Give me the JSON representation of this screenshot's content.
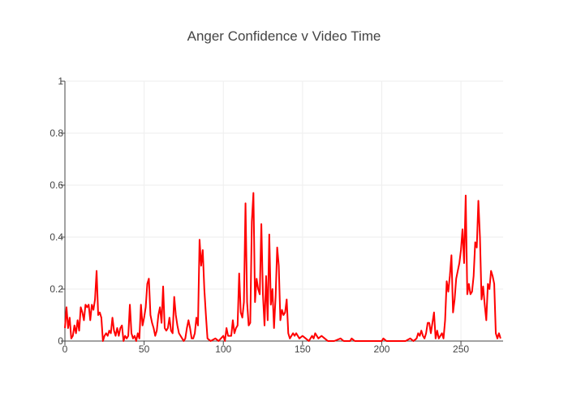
{
  "chart_data": {
    "type": "line",
    "title": "Anger Confidence v Video Time",
    "x": [
      0,
      1,
      2,
      3,
      4,
      5,
      6,
      7,
      8,
      9,
      10,
      11,
      12,
      13,
      14,
      15,
      16,
      17,
      18,
      19,
      20,
      21,
      22,
      23,
      24,
      25,
      26,
      27,
      28,
      29,
      30,
      31,
      32,
      33,
      34,
      35,
      36,
      37,
      38,
      39,
      40,
      41,
      42,
      43,
      44,
      45,
      46,
      47,
      48,
      49,
      50,
      51,
      52,
      53,
      54,
      55,
      56,
      57,
      58,
      59,
      60,
      61,
      62,
      63,
      64,
      65,
      66,
      67,
      68,
      69,
      70,
      71,
      72,
      73,
      74,
      75,
      76,
      77,
      78,
      79,
      80,
      81,
      82,
      83,
      84,
      85,
      86,
      87,
      88,
      89,
      90,
      92,
      95,
      97,
      100,
      101,
      102,
      103,
      104,
      105,
      106,
      107,
      108,
      109,
      110,
      111,
      112,
      113,
      114,
      115,
      116,
      117,
      118,
      119,
      120,
      121,
      122,
      123,
      124,
      125,
      126,
      127,
      128,
      129,
      130,
      131,
      132,
      133,
      134,
      135,
      136,
      137,
      138,
      139,
      140,
      141,
      142,
      143,
      144,
      145,
      146,
      148,
      150,
      152,
      154,
      156,
      157,
      158,
      160,
      162,
      164,
      166,
      170,
      174,
      176,
      180,
      181,
      183,
      190,
      200,
      201,
      203,
      210,
      215,
      218,
      220,
      222,
      223,
      224,
      225,
      226,
      227,
      228,
      229,
      230,
      231,
      232,
      233,
      234,
      235,
      236,
      237,
      238,
      239,
      240,
      241,
      242,
      243,
      244,
      245,
      246,
      247,
      248,
      249,
      250,
      251,
      252,
      253,
      254,
      255,
      256,
      257,
      258,
      259,
      260,
      261,
      262,
      263,
      264,
      265,
      266,
      267,
      268,
      269,
      270,
      271,
      272,
      273,
      274,
      275
    ],
    "series": [
      {
        "color": "#ff0000",
        "values": [
          0.05,
          0.13,
          0.05,
          0.09,
          0.01,
          0.02,
          0.06,
          0.03,
          0.08,
          0.04,
          0.13,
          0.11,
          0.08,
          0.14,
          0.13,
          0.14,
          0.08,
          0.14,
          0.12,
          0.16,
          0.27,
          0.1,
          0.11,
          0.09,
          0.0,
          0.02,
          0.03,
          0.02,
          0.04,
          0.03,
          0.09,
          0.04,
          0.02,
          0.05,
          0.02,
          0.05,
          0.06,
          0.0,
          0.02,
          0.01,
          0.02,
          0.14,
          0.03,
          0.01,
          0.02,
          0.0,
          0.03,
          0.01,
          0.14,
          0.06,
          0.09,
          0.13,
          0.22,
          0.24,
          0.1,
          0.07,
          0.05,
          0.02,
          0.04,
          0.1,
          0.13,
          0.07,
          0.21,
          0.05,
          0.04,
          0.05,
          0.09,
          0.04,
          0.03,
          0.17,
          0.1,
          0.06,
          0.03,
          0.02,
          0.01,
          0.0,
          0.01,
          0.05,
          0.08,
          0.05,
          0.01,
          0.01,
          0.03,
          0.09,
          0.06,
          0.39,
          0.29,
          0.35,
          0.2,
          0.1,
          0.01,
          0.0,
          0.01,
          0.0,
          0.02,
          0.0,
          0.05,
          0.02,
          0.02,
          0.02,
          0.08,
          0.03,
          0.05,
          0.06,
          0.26,
          0.11,
          0.09,
          0.15,
          0.53,
          0.15,
          0.06,
          0.07,
          0.46,
          0.57,
          0.15,
          0.24,
          0.2,
          0.18,
          0.45,
          0.18,
          0.06,
          0.25,
          0.08,
          0.41,
          0.14,
          0.2,
          0.05,
          0.17,
          0.36,
          0.29,
          0.08,
          0.12,
          0.1,
          0.11,
          0.16,
          0.03,
          0.01,
          0.02,
          0.03,
          0.02,
          0.03,
          0.01,
          0.02,
          0.01,
          0.0,
          0.02,
          0.01,
          0.03,
          0.01,
          0.02,
          0.01,
          0.0,
          0.0,
          0.01,
          0.0,
          0.0,
          0.01,
          0.0,
          0.0,
          0.0,
          0.01,
          0.0,
          0.0,
          0.0,
          0.01,
          0.0,
          0.01,
          0.03,
          0.02,
          0.04,
          0.02,
          0.01,
          0.03,
          0.07,
          0.07,
          0.03,
          0.07,
          0.11,
          0.01,
          0.04,
          0.01,
          0.02,
          0.03,
          0.01,
          0.08,
          0.23,
          0.19,
          0.25,
          0.33,
          0.11,
          0.16,
          0.24,
          0.27,
          0.3,
          0.35,
          0.43,
          0.3,
          0.56,
          0.18,
          0.22,
          0.18,
          0.19,
          0.25,
          0.38,
          0.36,
          0.54,
          0.4,
          0.16,
          0.21,
          0.14,
          0.08,
          0.22,
          0.2,
          0.27,
          0.25,
          0.22,
          0.03,
          0.01,
          0.03,
          0.01
        ]
      }
    ],
    "xlim": [
      0,
      276.6
    ],
    "ylim": [
      0,
      1
    ],
    "xticks": [
      0,
      50,
      100,
      150,
      200,
      250
    ],
    "yticks": [
      0,
      0.2,
      0.4,
      0.6,
      0.8,
      1
    ],
    "grid": true
  }
}
